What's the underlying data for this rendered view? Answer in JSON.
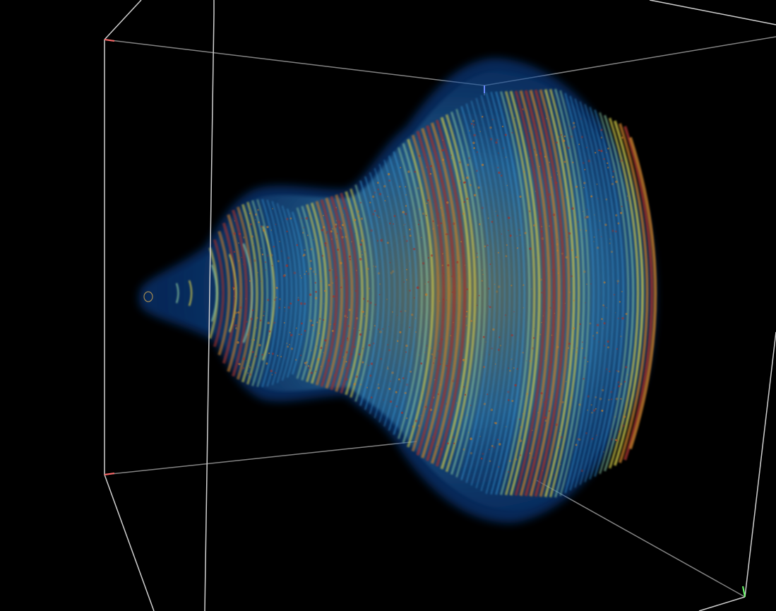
{
  "viewer": {
    "background_color": "#000000",
    "bounding_box_color": "#c8c8c8",
    "axis_tick_colors": [
      "#ff6a6a",
      "#6aff6a",
      "#6a8aff"
    ]
  },
  "volume": {
    "colormap": [
      "#0a3a7a",
      "#1f6fd1",
      "#3aa0e0",
      "#8ac8a0",
      "#d8d04a",
      "#c07a2a",
      "#a0302a"
    ],
    "description_icon": "volume-render-icon"
  }
}
